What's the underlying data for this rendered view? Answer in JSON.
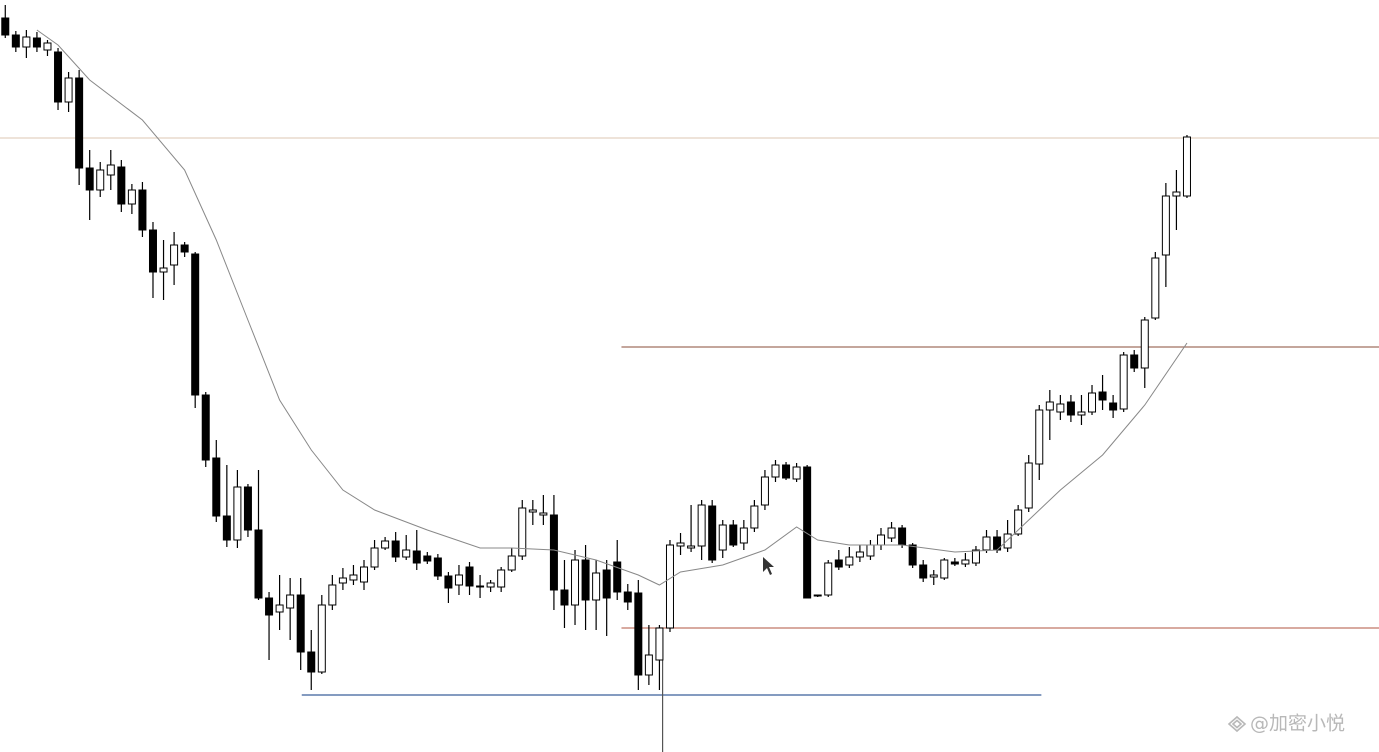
{
  "chart_data": {
    "type": "candlestick",
    "ylim": [
      0,
      752
    ],
    "xlim": [
      -0.5,
      130.2
    ],
    "candles": [
      [
        734,
        747,
        714,
        717
      ],
      [
        717,
        721,
        700,
        705
      ],
      [
        705,
        722,
        694,
        715
      ],
      [
        714,
        720,
        700,
        705
      ],
      [
        702,
        712,
        696,
        709
      ],
      [
        700,
        704,
        642,
        650
      ],
      [
        650,
        680,
        640,
        674
      ],
      [
        674,
        682,
        567,
        584
      ],
      [
        584,
        602,
        532,
        562
      ],
      [
        562,
        590,
        555,
        582
      ],
      [
        577,
        602,
        562,
        587
      ],
      [
        585,
        592,
        540,
        548
      ],
      [
        548,
        568,
        538,
        562
      ],
      [
        562,
        570,
        515,
        522
      ],
      [
        522,
        530,
        454,
        480
      ],
      [
        480,
        512,
        452,
        484
      ],
      [
        487,
        520,
        467,
        507
      ],
      [
        507,
        510,
        495,
        500
      ],
      [
        498,
        500,
        344,
        357
      ],
      [
        357,
        360,
        285,
        292
      ],
      [
        294,
        312,
        230,
        236
      ],
      [
        236,
        287,
        205,
        212
      ],
      [
        212,
        282,
        204,
        265
      ],
      [
        265,
        268,
        215,
        222
      ],
      [
        222,
        282,
        152,
        154
      ],
      [
        154,
        160,
        92,
        137
      ],
      [
        140,
        177,
        122,
        147
      ],
      [
        144,
        174,
        112,
        157
      ],
      [
        157,
        174,
        82,
        100
      ],
      [
        100,
        122,
        62,
        80
      ],
      [
        80,
        157,
        78,
        147
      ],
      [
        147,
        177,
        142,
        167
      ],
      [
        169,
        184,
        162,
        174
      ],
      [
        172,
        187,
        167,
        177
      ],
      [
        170,
        192,
        162,
        185
      ],
      [
        185,
        212,
        182,
        204
      ],
      [
        204,
        215,
        202,
        211
      ],
      [
        211,
        220,
        190,
        195
      ],
      [
        195,
        217,
        192,
        202
      ],
      [
        201,
        222,
        182,
        189
      ],
      [
        196,
        200,
        188,
        191
      ],
      [
        194,
        198,
        172,
        176
      ],
      [
        176,
        180,
        149,
        164
      ],
      [
        167,
        187,
        157,
        177
      ],
      [
        185,
        190,
        157,
        166
      ],
      [
        165,
        177,
        154,
        166
      ],
      [
        165,
        172,
        160,
        169
      ],
      [
        165,
        185,
        160,
        182
      ],
      [
        182,
        204,
        180,
        196
      ],
      [
        196,
        252,
        192,
        244
      ],
      [
        240,
        252,
        227,
        242
      ],
      [
        237,
        257,
        227,
        239
      ],
      [
        237,
        257,
        142,
        162
      ],
      [
        162,
        192,
        124,
        147
      ],
      [
        147,
        202,
        127,
        192
      ],
      [
        192,
        207,
        122,
        152
      ],
      [
        152,
        192,
        122,
        179
      ],
      [
        182,
        192,
        116,
        154
      ],
      [
        190,
        212,
        152,
        160
      ],
      [
        160,
        168,
        142,
        150
      ],
      [
        159,
        172,
        62,
        77
      ],
      [
        77,
        127,
        67,
        97
      ],
      [
        92,
        127,
        62,
        124
      ],
      [
        124,
        212,
        120,
        207
      ],
      [
        206,
        219,
        197,
        209
      ],
      [
        204,
        247,
        200,
        206
      ],
      [
        206,
        252,
        192,
        247
      ],
      [
        246,
        252,
        189,
        192
      ],
      [
        202,
        232,
        194,
        227
      ],
      [
        227,
        232,
        205,
        207
      ],
      [
        209,
        232,
        202,
        224
      ],
      [
        224,
        252,
        220,
        246
      ],
      [
        247,
        282,
        242,
        275
      ],
      [
        275,
        292,
        270,
        287
      ],
      [
        287,
        290,
        272,
        274
      ],
      [
        273,
        289,
        270,
        285
      ],
      [
        285,
        287,
        154,
        154
      ],
      [
        156,
        157,
        155,
        157
      ],
      [
        157,
        192,
        155,
        189
      ],
      [
        192,
        202,
        182,
        185
      ],
      [
        187,
        205,
        184,
        195
      ],
      [
        195,
        207,
        190,
        200
      ],
      [
        196,
        212,
        192,
        207
      ],
      [
        207,
        224,
        202,
        217
      ],
      [
        214,
        230,
        210,
        224
      ],
      [
        224,
        227,
        204,
        207
      ],
      [
        207,
        209,
        184,
        187
      ],
      [
        187,
        192,
        170,
        174
      ],
      [
        175,
        182,
        167,
        177
      ],
      [
        174,
        194,
        172,
        192
      ],
      [
        190,
        194,
        186,
        188
      ],
      [
        188,
        199,
        185,
        192
      ],
      [
        189,
        206,
        186,
        202
      ],
      [
        202,
        222,
        199,
        215
      ],
      [
        215,
        222,
        199,
        202
      ],
      [
        204,
        232,
        200,
        218
      ],
      [
        218,
        247,
        216,
        242
      ],
      [
        244,
        297,
        240,
        289
      ],
      [
        288,
        347,
        272,
        342
      ],
      [
        342,
        362,
        312,
        350
      ],
      [
        340,
        357,
        332,
        348
      ],
      [
        350,
        357,
        330,
        337
      ],
      [
        337,
        357,
        327,
        340
      ],
      [
        340,
        367,
        337,
        359
      ],
      [
        360,
        377,
        342,
        352
      ],
      [
        349,
        357,
        334,
        342
      ],
      [
        343,
        400,
        340,
        397
      ],
      [
        397,
        402,
        380,
        384
      ],
      [
        384,
        435,
        364,
        432
      ],
      [
        434,
        500,
        432,
        494
      ],
      [
        497,
        569,
        465,
        556
      ],
      [
        556,
        582,
        522,
        560
      ],
      [
        556,
        617,
        554,
        615
      ]
    ],
    "up_color": "#ffffff",
    "down_color": "#000000",
    "ma": {
      "color": "#888888",
      "x": [
        3,
        5,
        8,
        13,
        17,
        20,
        23,
        26,
        29,
        32,
        35,
        40,
        45,
        48,
        52,
        56,
        60,
        62,
        64,
        68,
        72,
        75,
        77,
        80,
        85,
        90,
        94,
        96,
        100,
        104,
        108,
        112
      ],
      "values": [
        722,
        707,
        672,
        632,
        582,
        512,
        432,
        352,
        302,
        262,
        242,
        222,
        204,
        204,
        202,
        192,
        177,
        167,
        180,
        187,
        202,
        225,
        212,
        207,
        207,
        200,
        202,
        222,
        262,
        297,
        347,
        409
      ]
    },
    "levels": [
      {
        "value": 614,
        "from": -0.5,
        "to": 130.2,
        "color": "#e3d2c2"
      },
      {
        "value": 405,
        "from": 58.4,
        "to": 130.2,
        "color": "#a07060"
      },
      {
        "value": 124,
        "from": 58.4,
        "to": 130.2,
        "color": "#c07868"
      },
      {
        "value": 57,
        "from": 28.1,
        "to": 98.2,
        "color": "#3b5f9a"
      }
    ],
    "vline": {
      "x": 62.3,
      "from": 0,
      "to": 124,
      "color": "#555555"
    },
    "watermark": "@加密小悦"
  }
}
